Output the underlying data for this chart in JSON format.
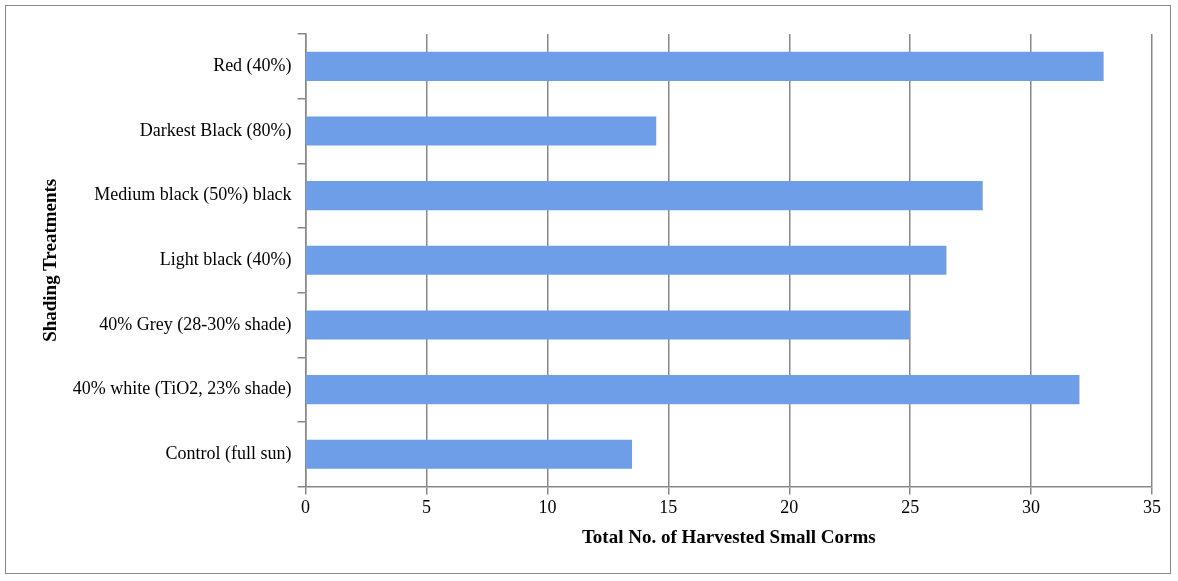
{
  "chart_data": {
    "type": "bar",
    "orientation": "horizontal",
    "xlabel": "Total No. of Harvested Small Corms",
    "ylabel": "Shading Treatments",
    "categories": [
      "Red (40%)",
      "Darkest Black (80%)",
      "Medium black (50%) black",
      "Light black (40%)",
      "40% Grey (28-30% shade)",
      "40% white (TiO2, 23% shade)",
      "Control (full sun)"
    ],
    "values": [
      33,
      14.5,
      28,
      26.5,
      25,
      32,
      13.5
    ],
    "color": "#6f9ee8",
    "xlim": [
      0,
      35
    ],
    "xticks": [
      0,
      5,
      10,
      15,
      20,
      25,
      30,
      35
    ],
    "grid": "x",
    "legend": false
  }
}
